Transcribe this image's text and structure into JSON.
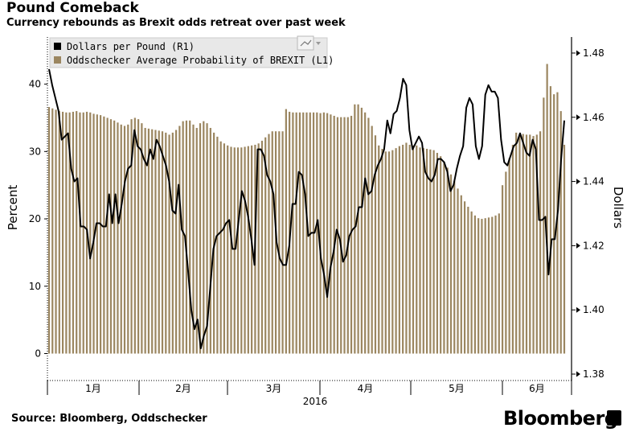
{
  "header": {
    "title": "Pound Comeback",
    "subtitle": "Currency rebounds as Brexit odds retreat over past week"
  },
  "footer": {
    "source": "Source: Bloomberg,  Oddschecker",
    "brand": "Bloomberg"
  },
  "colors": {
    "bars": "#9b8660",
    "line": "#000000",
    "axis": "#000000"
  },
  "chart_data": {
    "type": "bar",
    "title": "Pound Comeback",
    "subtitle": "Currency rebounds as Brexit odds retreat over past week",
    "xlabel": "2016",
    "ylabel": "Percent",
    "y2label": "Dollars",
    "ylim": [
      -4,
      47
    ],
    "y2lim": [
      1.378,
      1.485
    ],
    "yticks": [
      "0",
      "10",
      "20",
      "30",
      "40"
    ],
    "y2ticks": [
      "1.38",
      "1.40",
      "1.42",
      "1.44",
      "1.46",
      "1.48"
    ],
    "x_month_labels": [
      "1月",
      "2月",
      "3月",
      "4月",
      "5月",
      "6月"
    ],
    "legend": {
      "position": "top-left",
      "entries": [
        "Dollars per Pound (R1)",
        "Oddschecker Average Probability of BREXIT (L1)"
      ]
    },
    "series": [
      {
        "name": "Oddschecker Average Probability of BREXIT (L1)",
        "axis": "left",
        "chart_type": "bar",
        "values": [
          36.6,
          36.4,
          36.2,
          36,
          35.9,
          35.8,
          35.8,
          35.9,
          36,
          35.8,
          35.8,
          35.9,
          35.8,
          35.6,
          35.5,
          35.4,
          35.2,
          35,
          34.8,
          34.6,
          34.3,
          34,
          33.8,
          34,
          34.8,
          35,
          34.8,
          34.2,
          33.5,
          33.4,
          33.3,
          33.2,
          33.1,
          33.0,
          32.8,
          32.5,
          32.8,
          33.2,
          33.8,
          34.5,
          34.6,
          34.6,
          34,
          33.5,
          34.2,
          34.5,
          34.2,
          33.5,
          32.8,
          32.2,
          31.5,
          31.2,
          30.9,
          30.7,
          30.6,
          30.6,
          30.6,
          30.7,
          30.8,
          30.9,
          31.0,
          31.2,
          31.6,
          32.1,
          32.6,
          33.0,
          33.0,
          33.0,
          33.0,
          36.3,
          35.9,
          35.8,
          35.8,
          35.8,
          35.8,
          35.8,
          35.8,
          35.8,
          35.8,
          35.7,
          35.8,
          35.7,
          35.5,
          35.3,
          35.1,
          35.1,
          35.1,
          35.1,
          35.3,
          37.0,
          37.0,
          36.5,
          35.8,
          35.0,
          33.8,
          32.4,
          30.9,
          30.4,
          30.0,
          30.0,
          30.2,
          30.5,
          30.8,
          31.0,
          31.3,
          31.0,
          30.9,
          30.9,
          30.6,
          30.5,
          30.4,
          30.3,
          30.2,
          29.8,
          29.3,
          28.5,
          27.6,
          26.6,
          25.6,
          24.5,
          23.5,
          22.6,
          21.8,
          21.1,
          20.5,
          20.1,
          20.0,
          20.1,
          20.2,
          20.3,
          20.5,
          20.8,
          25,
          27,
          29,
          31,
          32.8,
          32.5,
          32.6,
          32.5,
          32.5,
          32.3,
          32.5,
          33.0,
          38.0,
          43.0,
          39.7,
          38.5,
          38.8,
          36.0,
          31.0
        ]
      },
      {
        "name": "Dollars per Pound (R1)",
        "axis": "right",
        "chart_type": "line",
        "values": [
          1.475,
          1.47,
          1.466,
          1.462,
          1.453,
          1.454,
          1.455,
          1.444,
          1.44,
          1.441,
          1.426,
          1.426,
          1.425,
          1.416,
          1.421,
          1.427,
          1.427,
          1.426,
          1.426,
          1.436,
          1.427,
          1.436,
          1.427,
          1.433,
          1.44,
          1.444,
          1.445,
          1.456,
          1.451,
          1.45,
          1.447,
          1.445,
          1.45,
          1.447,
          1.453,
          1.451,
          1.448,
          1.445,
          1.44,
          1.431,
          1.43,
          1.439,
          1.425,
          1.423,
          1.412,
          1.4,
          1.394,
          1.397,
          1.388,
          1.392,
          1.395,
          1.407,
          1.419,
          1.423,
          1.424,
          1.425,
          1.427,
          1.428,
          1.419,
          1.419,
          1.428,
          1.437,
          1.434,
          1.429,
          1.422,
          1.414,
          1.45,
          1.45,
          1.448,
          1.442,
          1.44,
          1.436,
          1.421,
          1.416,
          1.414,
          1.414,
          1.42,
          1.433,
          1.433,
          1.443,
          1.442,
          1.436,
          1.423,
          1.424,
          1.424,
          1.428,
          1.416,
          1.411,
          1.404,
          1.413,
          1.418,
          1.425,
          1.422,
          1.415,
          1.417,
          1.423,
          1.425,
          1.426,
          1.432,
          1.432,
          1.441,
          1.436,
          1.437,
          1.442,
          1.445,
          1.447,
          1.45,
          1.459,
          1.455,
          1.461,
          1.462,
          1.466,
          1.472,
          1.47,
          1.456,
          1.45,
          1.452,
          1.454,
          1.452,
          1.443,
          1.441,
          1.44,
          1.442,
          1.447,
          1.447,
          1.446,
          1.443,
          1.437,
          1.439,
          1.444,
          1.448,
          1.451,
          1.463,
          1.466,
          1.464,
          1.451,
          1.447,
          1.451,
          1.467,
          1.47,
          1.468,
          1.468,
          1.466,
          1.453,
          1.446,
          1.445,
          1.448,
          1.451,
          1.452,
          1.455,
          1.452,
          1.449,
          1.448,
          1.453,
          1.45,
          1.428,
          1.428,
          1.429,
          1.411,
          1.422,
          1.422,
          1.431,
          1.447,
          1.459
        ]
      }
    ]
  }
}
